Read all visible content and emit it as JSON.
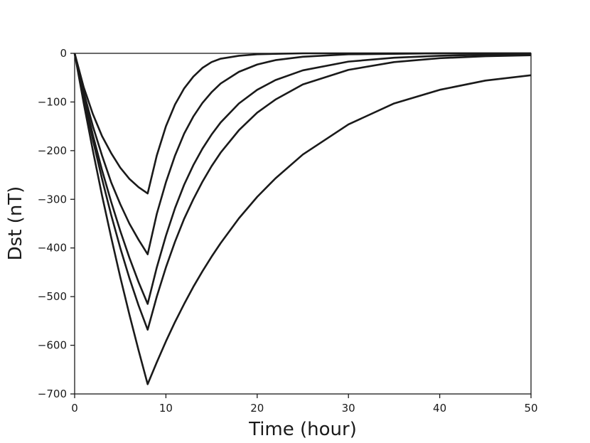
{
  "chart_data": {
    "type": "line",
    "title": "",
    "xlabel": "Time (hour)",
    "ylabel": "Dst (nT)",
    "xlim": [
      0,
      50
    ],
    "ylim": [
      -700,
      0
    ],
    "xticks": [
      0,
      10,
      20,
      30,
      40,
      50
    ],
    "xtick_labels": [
      "0",
      "10",
      "20",
      "30",
      "40",
      "50"
    ],
    "yticks": [
      0,
      -100,
      -200,
      -300,
      -400,
      -500,
      -600,
      -700
    ],
    "ytick_labels": [
      "0",
      "−100",
      "−200",
      "−300",
      "−400",
      "−500",
      "−600",
      "−700"
    ],
    "grid": false,
    "legend": "none",
    "line_color": "#1a1a1a",
    "series": [
      {
        "x": [
          0,
          1,
          2,
          3,
          4,
          5,
          6,
          7,
          8,
          9,
          10,
          11,
          12,
          13,
          14,
          15,
          16,
          18,
          20,
          22,
          25,
          30,
          35,
          40,
          45,
          50
        ],
        "y": [
          0,
          -70,
          -125,
          -170,
          -205,
          -235,
          -258,
          -275,
          -288,
          -210,
          -150,
          -105,
          -72,
          -48,
          -30,
          -18,
          -11,
          -5,
          -2,
          -1,
          0,
          0,
          0,
          0,
          0,
          0
        ]
      },
      {
        "x": [
          0,
          1,
          2,
          3,
          4,
          5,
          6,
          7,
          8,
          9,
          10,
          11,
          12,
          13,
          14,
          15,
          16,
          18,
          20,
          22,
          25,
          30,
          35,
          40,
          45,
          50
        ],
        "y": [
          0,
          -80,
          -150,
          -210,
          -265,
          -310,
          -350,
          -383,
          -413,
          -330,
          -265,
          -210,
          -165,
          -130,
          -102,
          -80,
          -62,
          -38,
          -23,
          -14,
          -7,
          -2,
          -1,
          0,
          0,
          0
        ]
      },
      {
        "x": [
          0,
          1,
          2,
          3,
          4,
          5,
          6,
          7,
          8,
          9,
          10,
          11,
          12,
          13,
          14,
          15,
          16,
          18,
          20,
          22,
          25,
          30,
          35,
          40,
          45,
          50
        ],
        "y": [
          0,
          -88,
          -168,
          -240,
          -305,
          -365,
          -420,
          -470,
          -515,
          -440,
          -375,
          -318,
          -270,
          -230,
          -196,
          -167,
          -142,
          -103,
          -75,
          -55,
          -35,
          -17,
          -9,
          -5,
          -3,
          -2
        ]
      },
      {
        "x": [
          0,
          1,
          2,
          3,
          4,
          5,
          6,
          7,
          8,
          9,
          10,
          11,
          12,
          13,
          14,
          15,
          16,
          18,
          20,
          22,
          25,
          30,
          35,
          40,
          45,
          50
        ],
        "y": [
          0,
          -92,
          -178,
          -258,
          -332,
          -400,
          -462,
          -518,
          -568,
          -500,
          -440,
          -387,
          -340,
          -300,
          -264,
          -232,
          -204,
          -158,
          -122,
          -95,
          -64,
          -34,
          -18,
          -10,
          -6,
          -4
        ]
      },
      {
        "x": [
          0,
          1,
          2,
          3,
          4,
          5,
          6,
          7,
          8,
          9,
          10,
          11,
          12,
          13,
          14,
          15,
          16,
          18,
          20,
          22,
          25,
          30,
          35,
          40,
          45,
          50
        ],
        "y": [
          0,
          -103,
          -200,
          -292,
          -378,
          -460,
          -537,
          -610,
          -680,
          -635,
          -592,
          -552,
          -515,
          -480,
          -448,
          -418,
          -390,
          -339,
          -295,
          -257,
          -208,
          -146,
          -103,
          -75,
          -56,
          -45
        ]
      }
    ]
  }
}
